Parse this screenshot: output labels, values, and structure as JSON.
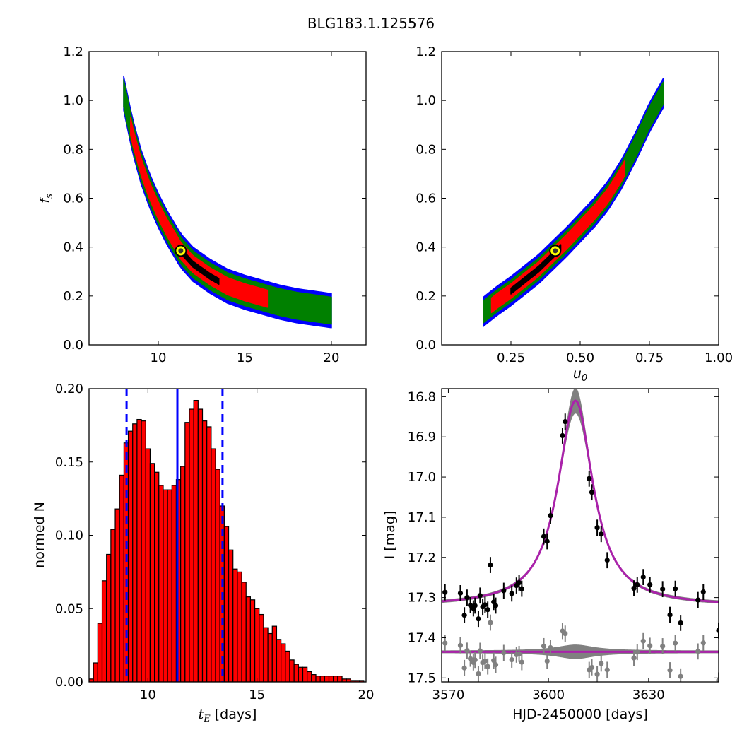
{
  "figure_title": "BLG183.1.125576",
  "colors": {
    "outer": "#0000ff",
    "middle": "#008000",
    "inner": "#ff0000",
    "core": "#000000",
    "best_fit_fill": "#ffff00",
    "hist_fill": "#ff0000",
    "hist_lines": "#0000ff",
    "model": "#aa22aa",
    "model_band": "#808080",
    "data": "#000000",
    "residual": "#808080"
  },
  "chart_data": [
    {
      "type": "scatter",
      "id": "fs_vs_tE",
      "xlabel": "",
      "ylabel": "f_s",
      "xlim": [
        6,
        22
      ],
      "ylim": [
        0,
        1.2
      ],
      "xticks": [
        "10",
        "15",
        "20"
      ],
      "yticks": [
        "0.0",
        "0.2",
        "0.4",
        "0.6",
        "0.8",
        "1.0",
        "1.2"
      ],
      "best_fit": {
        "x": 11.3,
        "y": 0.385
      },
      "track": [
        [
          8.0,
          1.03
        ],
        [
          8.5,
          0.86
        ],
        [
          9.0,
          0.73
        ],
        [
          9.5,
          0.63
        ],
        [
          10.0,
          0.55
        ],
        [
          10.5,
          0.48
        ],
        [
          11.3,
          0.385
        ],
        [
          12.0,
          0.33
        ],
        [
          13.0,
          0.28
        ],
        [
          14.0,
          0.24
        ],
        [
          15.0,
          0.215
        ],
        [
          16.0,
          0.195
        ],
        [
          17.0,
          0.175
        ],
        [
          18.0,
          0.16
        ],
        [
          19.0,
          0.15
        ],
        [
          20.0,
          0.14
        ]
      ],
      "region_widths": {
        "core": 0.012,
        "inner": 0.035,
        "middle": 0.055,
        "outer": 0.07
      },
      "inner_x_range": [
        8.4,
        16.3
      ],
      "core_x_range": [
        11.2,
        13.5
      ]
    },
    {
      "type": "scatter",
      "id": "fs_vs_u0",
      "xlabel": "u_0",
      "ylabel": "",
      "xlim": [
        0,
        1.0
      ],
      "ylim": [
        0,
        1.2
      ],
      "xticks": [
        "0.25",
        "0.50",
        "0.75",
        "1.00"
      ],
      "yticks": [
        "0.0",
        "0.2",
        "0.4",
        "0.6",
        "0.8",
        "1.0",
        "1.2"
      ],
      "best_fit": {
        "x": 0.41,
        "y": 0.385
      },
      "track": [
        [
          0.15,
          0.135
        ],
        [
          0.2,
          0.18
        ],
        [
          0.25,
          0.22
        ],
        [
          0.3,
          0.265
        ],
        [
          0.35,
          0.31
        ],
        [
          0.4,
          0.365
        ],
        [
          0.45,
          0.42
        ],
        [
          0.5,
          0.48
        ],
        [
          0.55,
          0.54
        ],
        [
          0.6,
          0.61
        ],
        [
          0.65,
          0.7
        ],
        [
          0.7,
          0.81
        ],
        [
          0.75,
          0.93
        ],
        [
          0.8,
          1.03
        ]
      ],
      "region_widths": {
        "core": 0.012,
        "inner": 0.03,
        "middle": 0.045,
        "outer": 0.06
      },
      "inner_x_range": [
        0.18,
        0.66
      ],
      "core_x_range": [
        0.25,
        0.43
      ]
    },
    {
      "type": "bar",
      "id": "tE_histogram",
      "xlabel": "t_E [days]",
      "ylabel": "normed N",
      "xlim": [
        7.3,
        20
      ],
      "ylim": [
        0,
        0.2
      ],
      "xticks": [
        "10",
        "15",
        "20"
      ],
      "yticks": [
        "0.00",
        "0.05",
        "0.10",
        "0.15",
        "0.20"
      ],
      "bin_start": 7.3,
      "bin_width": 0.2,
      "values": [
        0.002,
        0.013,
        0.04,
        0.069,
        0.087,
        0.104,
        0.118,
        0.141,
        0.163,
        0.171,
        0.176,
        0.179,
        0.178,
        0.159,
        0.149,
        0.143,
        0.134,
        0.131,
        0.131,
        0.134,
        0.138,
        0.147,
        0.177,
        0.186,
        0.192,
        0.186,
        0.178,
        0.174,
        0.159,
        0.145,
        0.12,
        0.106,
        0.09,
        0.077,
        0.075,
        0.068,
        0.058,
        0.056,
        0.05,
        0.046,
        0.037,
        0.033,
        0.038,
        0.029,
        0.026,
        0.021,
        0.015,
        0.012,
        0.01,
        0.01,
        0.007,
        0.005,
        0.004,
        0.004,
        0.004,
        0.004,
        0.004,
        0.004,
        0.002,
        0.002,
        0.001,
        0.001,
        0.001
      ],
      "vlines": {
        "solid": 11.35,
        "dashed": [
          9.02,
          13.42
        ]
      }
    },
    {
      "type": "line",
      "id": "light_curve",
      "xlabel": "HJD-2450000 [days]",
      "ylabel": "I [mag]",
      "xlim": [
        3568,
        3651
      ],
      "ylim": [
        17.51,
        16.78
      ],
      "y_inverted": true,
      "xticks": [
        "3570",
        "3600",
        "3630"
      ],
      "yticks": [
        "16.8",
        "16.9",
        "17.0",
        "17.1",
        "17.2",
        "17.3",
        "17.4",
        "17.5"
      ],
      "model": {
        "t0": 3608.1,
        "base_mag": 17.322,
        "peak_mag": 16.81,
        "tau": 6.4
      },
      "residual_baseline": 17.435,
      "points": [
        {
          "x": 3569.0,
          "y": 17.287,
          "e": 0.02
        },
        {
          "x": 3573.6,
          "y": 17.289,
          "e": 0.02
        },
        {
          "x": 3574.8,
          "y": 17.344,
          "e": 0.02
        },
        {
          "x": 3575.6,
          "y": 17.3,
          "e": 0.02
        },
        {
          "x": 3576.6,
          "y": 17.319,
          "e": 0.02
        },
        {
          "x": 3577.5,
          "y": 17.327,
          "e": 0.02
        },
        {
          "x": 3578.0,
          "y": 17.32,
          "e": 0.02
        },
        {
          "x": 3579.0,
          "y": 17.353,
          "e": 0.02
        },
        {
          "x": 3579.5,
          "y": 17.295,
          "e": 0.02
        },
        {
          "x": 3580.3,
          "y": 17.323,
          "e": 0.02
        },
        {
          "x": 3581.0,
          "y": 17.318,
          "e": 0.02
        },
        {
          "x": 3581.8,
          "y": 17.33,
          "e": 0.02
        },
        {
          "x": 3582.6,
          "y": 17.219,
          "e": 0.02
        },
        {
          "x": 3583.6,
          "y": 17.311,
          "e": 0.02
        },
        {
          "x": 3584.2,
          "y": 17.32,
          "e": 0.02
        },
        {
          "x": 3586.6,
          "y": 17.283,
          "e": 0.02
        },
        {
          "x": 3589.0,
          "y": 17.29,
          "e": 0.02
        },
        {
          "x": 3590.4,
          "y": 17.27,
          "e": 0.02
        },
        {
          "x": 3591.2,
          "y": 17.263,
          "e": 0.02
        },
        {
          "x": 3592.0,
          "y": 17.278,
          "e": 0.02
        },
        {
          "x": 3598.6,
          "y": 17.148,
          "e": 0.02
        },
        {
          "x": 3599.6,
          "y": 17.16,
          "e": 0.02
        },
        {
          "x": 3600.6,
          "y": 17.096,
          "e": 0.02
        },
        {
          "x": 3604.2,
          "y": 16.897,
          "e": 0.02
        },
        {
          "x": 3605.0,
          "y": 16.862,
          "e": 0.02
        },
        {
          "x": 3612.2,
          "y": 17.004,
          "e": 0.02
        },
        {
          "x": 3613.0,
          "y": 17.038,
          "e": 0.02
        },
        {
          "x": 3614.6,
          "y": 17.126,
          "e": 0.02
        },
        {
          "x": 3615.8,
          "y": 17.142,
          "e": 0.02
        },
        {
          "x": 3617.6,
          "y": 17.207,
          "e": 0.02
        },
        {
          "x": 3625.6,
          "y": 17.277,
          "e": 0.02
        },
        {
          "x": 3626.6,
          "y": 17.268,
          "e": 0.02
        },
        {
          "x": 3628.4,
          "y": 17.249,
          "e": 0.02
        },
        {
          "x": 3630.4,
          "y": 17.268,
          "e": 0.02
        },
        {
          "x": 3634.2,
          "y": 17.279,
          "e": 0.02
        },
        {
          "x": 3636.4,
          "y": 17.343,
          "e": 0.02
        },
        {
          "x": 3638.0,
          "y": 17.278,
          "e": 0.02
        },
        {
          "x": 3639.6,
          "y": 17.363,
          "e": 0.02
        },
        {
          "x": 3644.8,
          "y": 17.306,
          "e": 0.02
        },
        {
          "x": 3646.4,
          "y": 17.286,
          "e": 0.02
        },
        {
          "x": 3651.0,
          "y": 17.382,
          "e": 0.02
        }
      ]
    }
  ]
}
